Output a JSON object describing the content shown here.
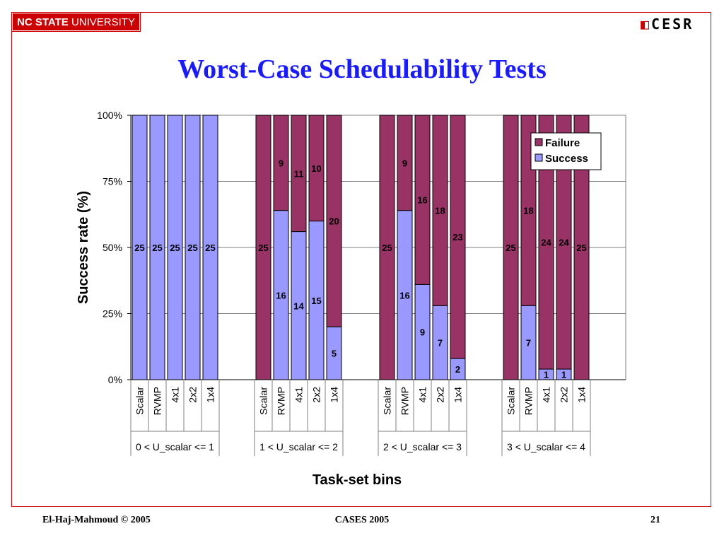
{
  "slide": {
    "logo_left_bold": "NC STATE",
    "logo_left_rest": " UNIVERSITY",
    "logo_right": "CESR",
    "title": "Worst-Case Schedulability Tests",
    "footer_left": "El-Haj-Mahmoud © 2005",
    "footer_center": "CASES 2005",
    "footer_right": "21"
  },
  "chart_data": {
    "type": "bar",
    "stacked": true,
    "normalized_percent": true,
    "title": "",
    "xlabel": "Task-set bins",
    "ylabel": "Success rate (%)",
    "ylim": [
      0,
      100
    ],
    "yticks": [
      "0%",
      "25%",
      "50%",
      "75%",
      "100%"
    ],
    "legend": {
      "placement": "top-right",
      "entries": [
        "Failure",
        "Success"
      ]
    },
    "groups": [
      {
        "label": "0 < U_scalar <= 1",
        "categories": [
          "Scalar",
          "RVMP",
          "4x1",
          "2x2",
          "1x4"
        ],
        "success": [
          25,
          25,
          25,
          25,
          25
        ],
        "failure": [
          0,
          0,
          0,
          0,
          0
        ]
      },
      {
        "label": "1 < U_scalar <= 2",
        "categories": [
          "Scalar",
          "RVMP",
          "4x1",
          "2x2",
          "1x4"
        ],
        "success": [
          0,
          16,
          14,
          15,
          5
        ],
        "failure": [
          25,
          9,
          11,
          10,
          20
        ]
      },
      {
        "label": "2 < U_scalar <= 3",
        "categories": [
          "Scalar",
          "RVMP",
          "4x1",
          "2x2",
          "1x4"
        ],
        "success": [
          0,
          16,
          9,
          7,
          2
        ],
        "failure": [
          25,
          9,
          16,
          18,
          23
        ]
      },
      {
        "label": "3 < U_scalar <= 4",
        "categories": [
          "Scalar",
          "RVMP",
          "4x1",
          "2x2",
          "1x4"
        ],
        "success": [
          0,
          7,
          1,
          1,
          0
        ],
        "failure": [
          25,
          18,
          24,
          24,
          25
        ]
      }
    ],
    "colors": {
      "failure": "#993366",
      "success": "#9999ff"
    },
    "grid": true
  }
}
